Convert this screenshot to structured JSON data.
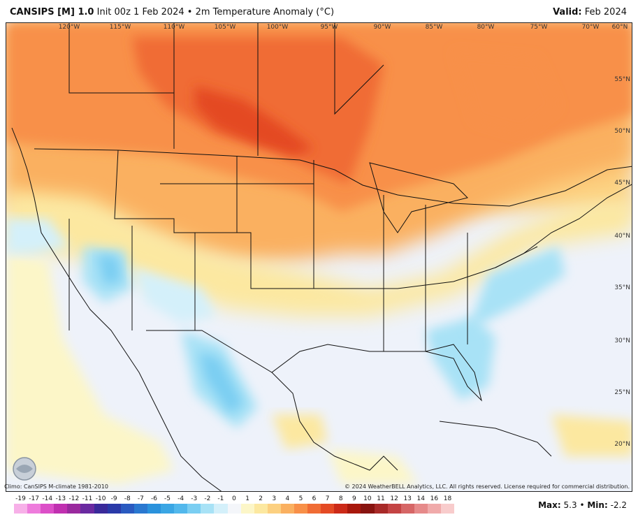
{
  "header": {
    "model": "CANSIPS [M] 1.0",
    "run": "Init 00z 1 Feb 2024 • 2m Temperature Anomaly (°C)",
    "valid_label": "Valid:",
    "valid_value": "Feb 2024"
  },
  "map": {
    "lon_labels": [
      "120°W",
      "115°W",
      "110°W",
      "105°W",
      "100°W",
      "95°W",
      "90°W",
      "85°W",
      "80°W",
      "75°W",
      "70°W",
      "60°N"
    ],
    "lat_labels": [
      "55°N",
      "50°N",
      "45°N",
      "40°N",
      "35°N",
      "30°N",
      "25°N",
      "20°N"
    ],
    "logo_text": "WEATHERBELL"
  },
  "footer": {
    "climo": "Climo: CanSIPS M-climate 1981-2010",
    "copyright": "© 2024 WeatherBELL Analytics, LLC. All rights reserved. License required for commercial distribution.",
    "max_label": "Max:",
    "max_value": "5.3",
    "min_label": "Min:",
    "min_value": "-2.2"
  },
  "colorbar": {
    "labels": [
      "-19",
      "-17",
      "-14",
      "-13",
      "-12",
      "-11",
      "-10",
      "-9",
      "-8",
      "-7",
      "-6",
      "-5",
      "-4",
      "-3",
      "-2",
      "-1",
      "0",
      "1",
      "2",
      "3",
      "4",
      "5",
      "6",
      "7",
      "8",
      "9",
      "10",
      "11",
      "12",
      "13",
      "14",
      "16",
      "18"
    ],
    "colors": [
      "#f7b0e8",
      "#ee7cdc",
      "#dc4fc8",
      "#c030b0",
      "#9a2a9e",
      "#6a2aa0",
      "#3a2a9a",
      "#2a3aa8",
      "#2a5ac0",
      "#2a78d0",
      "#2a92dc",
      "#3aa6e4",
      "#52b8ec",
      "#7acef2",
      "#a8e2f6",
      "#d4f0fa",
      "#f4f6fa",
      "#fcf6c8",
      "#fce8a0",
      "#fcd080",
      "#fab060",
      "#f89048",
      "#f06c34",
      "#e44a24",
      "#cc2a18",
      "#a8180c",
      "#881410",
      "#a82a28",
      "#c44444",
      "#d66666",
      "#e68a8a",
      "#f0aaaa",
      "#f8cccc"
    ]
  }
}
